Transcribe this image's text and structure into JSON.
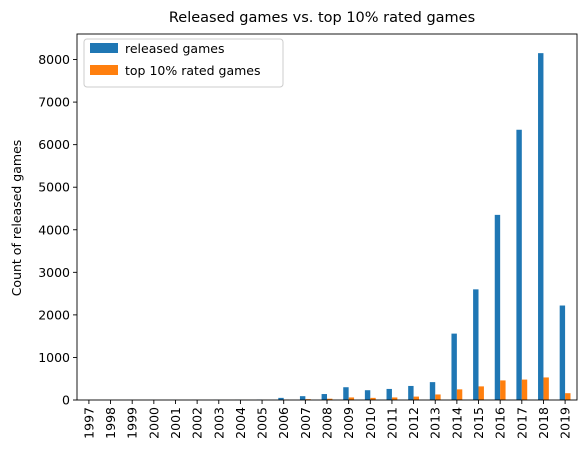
{
  "chart_data": {
    "type": "bar",
    "title": "Released games vs. top 10% rated games",
    "xlabel": "",
    "ylabel": "Count of released games",
    "ylim": [
      0,
      8600
    ],
    "yticks": [
      "0",
      "1000",
      "2000",
      "3000",
      "4000",
      "5000",
      "6000",
      "7000",
      "8000"
    ],
    "grid": false,
    "legend_position": "top-left",
    "categories": [
      "1997",
      "1998",
      "1999",
      "2000",
      "2001",
      "2002",
      "2003",
      "2004",
      "2005",
      "2006",
      "2007",
      "2008",
      "2009",
      "2010",
      "2011",
      "2012",
      "2013",
      "2014",
      "2015",
      "2016",
      "2017",
      "2018",
      "2019"
    ],
    "series": [
      {
        "name": "released games",
        "color": "#1f77b4",
        "values": [
          1,
          1,
          2,
          2,
          2,
          3,
          4,
          5,
          10,
          50,
          90,
          140,
          300,
          230,
          260,
          330,
          420,
          1560,
          2600,
          4350,
          6350,
          8150,
          2220
        ]
      },
      {
        "name": "top 10% rated games",
        "color": "#ff7f0e",
        "values": [
          0,
          0,
          0,
          0,
          0,
          1,
          1,
          1,
          2,
          10,
          20,
          30,
          60,
          50,
          60,
          80,
          130,
          250,
          320,
          460,
          480,
          530,
          160
        ]
      }
    ]
  }
}
